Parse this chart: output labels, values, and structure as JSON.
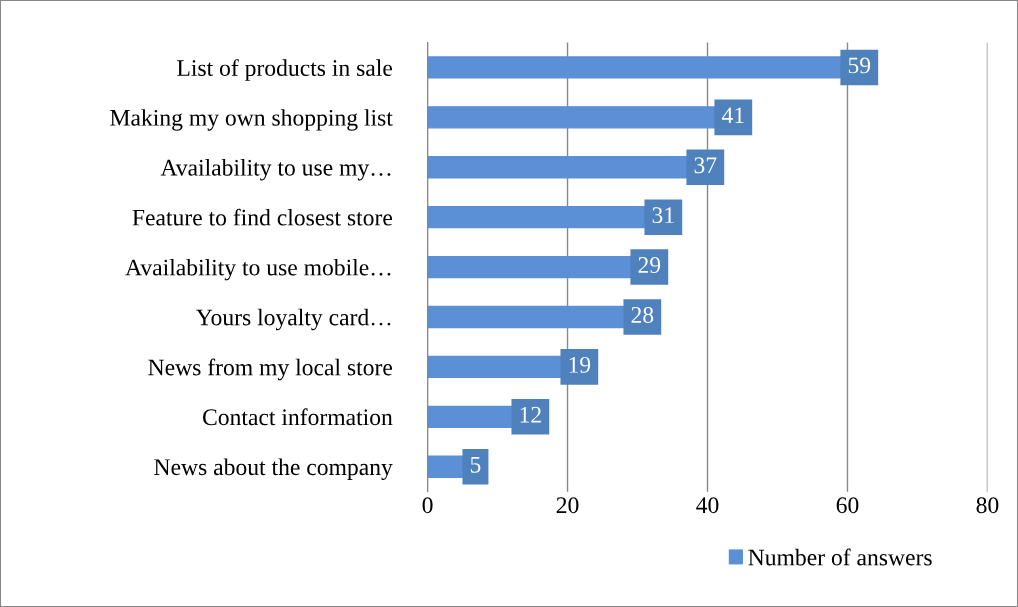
{
  "chart_data": {
    "type": "bar",
    "orientation": "horizontal",
    "categories": [
      "List of products in sale",
      "Making my own shopping list",
      "Availability to use my…",
      "Feature to find closest store",
      "Availability to use mobile…",
      "Yours loyalty card…",
      "News from my local store",
      "Contact information",
      "News about the company"
    ],
    "series": [
      {
        "name": "Number of answers",
        "color": "#5b8fd6",
        "values": [
          59,
          41,
          37,
          31,
          29,
          28,
          19,
          12,
          5
        ]
      }
    ],
    "xlim": [
      0,
      80
    ],
    "xticks": [
      0,
      20,
      40,
      60,
      80
    ],
    "grid": "x",
    "legend": "bottom",
    "data_labels": true
  }
}
